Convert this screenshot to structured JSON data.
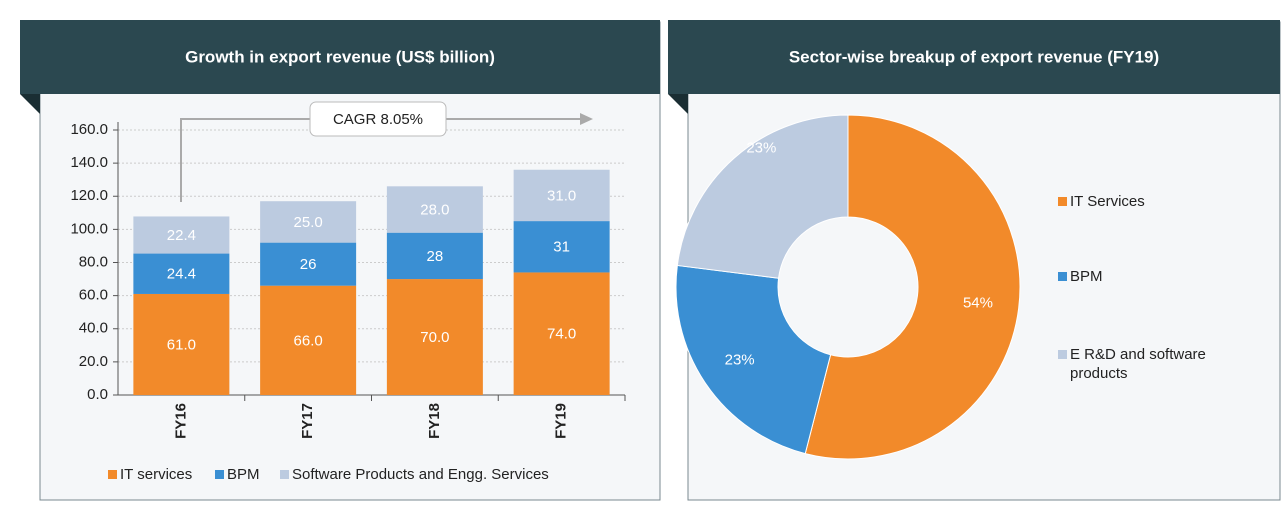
{
  "chart_data": [
    {
      "type": "stacked_bar",
      "title": "Growth in export revenue (US$ billion)",
      "categories": [
        "FY16",
        "FY17",
        "FY18",
        "FY19"
      ],
      "series": [
        {
          "name": "IT services",
          "color": "#f28a2a",
          "values": [
            61.0,
            66.0,
            70.0,
            74.0
          ],
          "value_labels": [
            "61.0",
            "66.0",
            "70.0",
            "74.0"
          ]
        },
        {
          "name": "BPM",
          "color": "#3a8fd3",
          "values": [
            24.4,
            26,
            28,
            31
          ]
        },
        {
          "name": "Software Products and Engg. Services",
          "color": "#bccbe0",
          "values": [
            22.4,
            25.0,
            28.0,
            31.0
          ],
          "value_labels": [
            "22.4",
            "25.0",
            "28.0",
            "31.0"
          ]
        }
      ],
      "ylim": [
        0,
        160
      ],
      "yticks": [
        {
          "value": 0,
          "label": "0.0"
        },
        {
          "value": 20,
          "label": "20.0"
        },
        {
          "value": 40,
          "label": "40.0"
        },
        {
          "value": 60,
          "label": "60.0"
        },
        {
          "value": 80,
          "label": "80.0"
        },
        {
          "value": 100,
          "label": "100.0"
        },
        {
          "value": 120,
          "label": "120.0"
        },
        {
          "value": 140,
          "label": "140.0"
        },
        {
          "value": 160,
          "label": "160.0"
        }
      ],
      "grid": true,
      "legend": "bottom",
      "annotation": "CAGR 8.05%"
    },
    {
      "type": "donut",
      "title": "Sector-wise breakup of export revenue (FY19)",
      "categories": [
        "IT Services",
        "BPM",
        "E R&D and software products"
      ],
      "values": [
        54,
        23,
        23
      ],
      "value_labels": [
        "54%",
        "23%",
        "23%"
      ],
      "colors": [
        "#f28a2a",
        "#3a8fd3",
        "#bccbe0"
      ],
      "legend": "right"
    }
  ]
}
